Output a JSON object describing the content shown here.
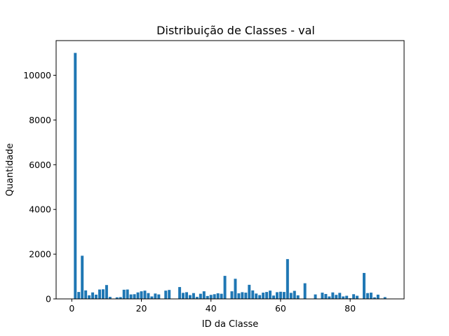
{
  "chart_data": {
    "type": "bar",
    "title": "Distribuição de Classes - val",
    "xlabel": "ID da Classe",
    "ylabel": "Quantidade",
    "xlim": [
      -4.5,
      95.5
    ],
    "ylim": [
      0,
      11550
    ],
    "xticks": [
      0,
      20,
      40,
      60,
      80
    ],
    "yticks": [
      0,
      2000,
      4000,
      6000,
      8000,
      10000
    ],
    "grid": false,
    "legend": false,
    "bar_color": "#1f77b4",
    "x": [
      1,
      2,
      3,
      4,
      5,
      6,
      7,
      8,
      9,
      10,
      11,
      13,
      14,
      15,
      16,
      17,
      18,
      19,
      20,
      21,
      22,
      23,
      24,
      25,
      27,
      28,
      31,
      32,
      33,
      34,
      35,
      36,
      37,
      38,
      39,
      40,
      41,
      42,
      43,
      44,
      46,
      47,
      48,
      49,
      50,
      51,
      52,
      53,
      54,
      55,
      56,
      57,
      58,
      59,
      60,
      61,
      62,
      63,
      64,
      65,
      67,
      70,
      72,
      73,
      74,
      75,
      76,
      77,
      78,
      79,
      80,
      81,
      82,
      84,
      85,
      86,
      87,
      88,
      89,
      90
    ],
    "values": [
      11000,
      310,
      1930,
      380,
      160,
      290,
      190,
      420,
      430,
      620,
      90,
      70,
      80,
      410,
      420,
      200,
      210,
      290,
      340,
      370,
      260,
      110,
      240,
      200,
      370,
      400,
      530,
      270,
      300,
      170,
      260,
      90,
      230,
      340,
      130,
      180,
      210,
      250,
      230,
      1030,
      340,
      900,
      250,
      300,
      280,
      630,
      380,
      240,
      170,
      280,
      310,
      370,
      150,
      300,
      320,
      310,
      1780,
      270,
      360,
      160,
      700,
      200,
      280,
      220,
      110,
      290,
      180,
      270,
      110,
      140,
      30,
      210,
      140,
      1160,
      260,
      280,
      70,
      190,
      20,
      80
    ]
  }
}
